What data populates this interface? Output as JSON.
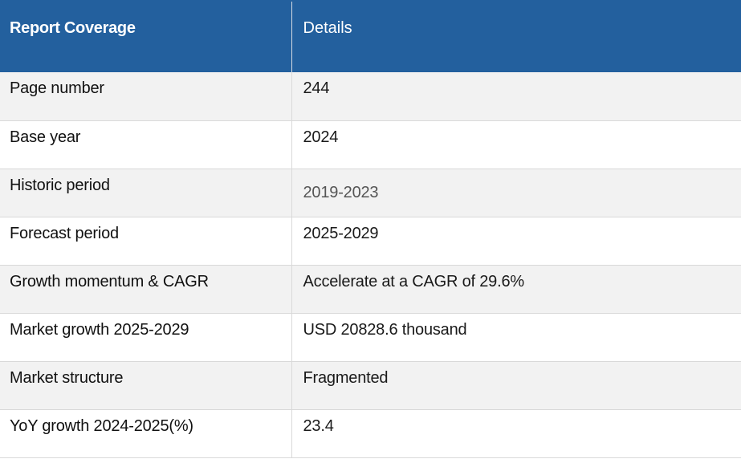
{
  "header": {
    "col1": "Report Coverage",
    "col2": "Details"
  },
  "rows": [
    {
      "label": "Page number",
      "value": "244"
    },
    {
      "label": "Base year",
      "value": "2024"
    },
    {
      "label": "Historic period",
      "value": "2019-2023"
    },
    {
      "label": "Forecast period",
      "value": "2025-2029"
    },
    {
      "label": "Growth momentum & CAGR",
      "value": "Accelerate at a CAGR of 29.6%"
    },
    {
      "label": "Market growth 2025-2029",
      "value": "USD 20828.6 thousand"
    },
    {
      "label": "Market structure",
      "value": "Fragmented"
    },
    {
      "label": "YoY growth 2024-2025(%)",
      "value": "23.4"
    }
  ],
  "colors": {
    "header_bg": "#23609e",
    "stripe_bg": "#f2f2f2"
  }
}
